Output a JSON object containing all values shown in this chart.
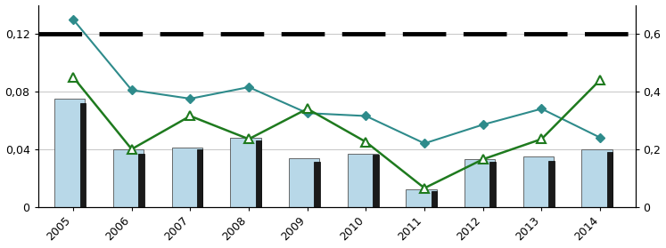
{
  "years": [
    2005,
    2006,
    2007,
    2008,
    2009,
    2010,
    2011,
    2012,
    2013,
    2014
  ],
  "bars_light": [
    0.075,
    0.04,
    0.041,
    0.048,
    0.034,
    0.037,
    0.012,
    0.033,
    0.035,
    0.04
  ],
  "bars_dark": [
    0.072,
    0.037,
    0.04,
    0.046,
    0.031,
    0.036,
    0.011,
    0.031,
    0.032,
    0.038
  ],
  "teal_diamond": [
    0.13,
    0.081,
    0.075,
    0.083,
    0.065,
    0.063,
    0.044,
    0.057,
    0.068,
    0.048
  ],
  "green_triangle": [
    0.09,
    0.04,
    0.063,
    0.047,
    0.068,
    0.045,
    0.013,
    0.033,
    0.047,
    0.088
  ],
  "dashed_line_y": 0.12,
  "bar_light_color": "#b8d8e8",
  "bar_dark_color": "#1a1a1a",
  "teal_color": "#2e8b8b",
  "green_color": "#1e7a1e",
  "dashed_color": "#000000",
  "ylim_left": [
    0,
    0.14
  ],
  "ylim_right": [
    0,
    0.7
  ],
  "yticks_left": [
    0,
    0.04,
    0.08,
    0.12
  ],
  "yticks_right": [
    0,
    0.2,
    0.4,
    0.6
  ],
  "ytick_labels_left": [
    "0",
    "0,04",
    "0,08",
    "0,12"
  ],
  "ytick_labels_right": [
    "0",
    "0,2",
    "0,4",
    "0,6"
  ]
}
